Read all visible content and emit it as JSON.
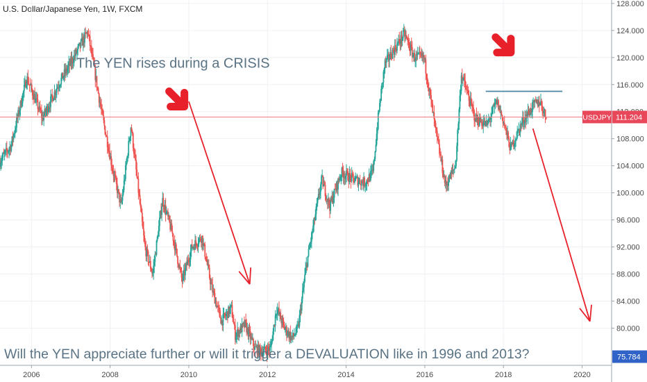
{
  "chart_data": {
    "type": "candlestick",
    "title": "U.S. Dollar/Japanese Yen, 1W, FXCM",
    "symbol": "USDJPY",
    "x_ticks": [
      "2006",
      "2008",
      "2010",
      "2012",
      "2014",
      "2016",
      "2018",
      "2020"
    ],
    "y_ticks": [
      "80.000",
      "84.000",
      "88.000",
      "92.000",
      "96.000",
      "100.000",
      "104.000",
      "108.000",
      "112.000",
      "116.000",
      "120.000",
      "124.000",
      "128.000"
    ],
    "ylim": [
      74.5,
      128.5
    ],
    "xlim": [
      2005.2,
      2020.75
    ],
    "last_price": 111.204,
    "last_price_label": "111.204",
    "low_marker": 75.784,
    "low_marker_label": "75.784",
    "grid": true,
    "price_path": [
      [
        2005.2,
        104.5
      ],
      [
        2005.5,
        107
      ],
      [
        2005.9,
        117
      ],
      [
        2006.3,
        111
      ],
      [
        2006.7,
        116
      ],
      [
        2007.0,
        119
      ],
      [
        2007.45,
        123.8
      ],
      [
        2007.8,
        112
      ],
      [
        2008.1,
        103
      ],
      [
        2008.3,
        98
      ],
      [
        2008.55,
        110
      ],
      [
        2008.9,
        92
      ],
      [
        2009.1,
        88
      ],
      [
        2009.35,
        99
      ],
      [
        2009.6,
        94
      ],
      [
        2009.85,
        87
      ],
      [
        2010.1,
        92
      ],
      [
        2010.35,
        93.5
      ],
      [
        2010.6,
        86
      ],
      [
        2010.85,
        81
      ],
      [
        2011.1,
        83
      ],
      [
        2011.2,
        79
      ],
      [
        2011.45,
        80.5
      ],
      [
        2011.7,
        77
      ],
      [
        2011.9,
        76.5
      ],
      [
        2012.1,
        77
      ],
      [
        2012.25,
        83
      ],
      [
        2012.45,
        80
      ],
      [
        2012.65,
        78.5
      ],
      [
        2012.8,
        80
      ],
      [
        2013.0,
        89
      ],
      [
        2013.4,
        102
      ],
      [
        2013.6,
        98
      ],
      [
        2013.9,
        103
      ],
      [
        2014.2,
        102
      ],
      [
        2014.5,
        101.5
      ],
      [
        2014.7,
        103
      ],
      [
        2014.85,
        112
      ],
      [
        2015.0,
        119
      ],
      [
        2015.5,
        123.5
      ],
      [
        2015.75,
        120
      ],
      [
        2016.0,
        120
      ],
      [
        2016.3,
        109
      ],
      [
        2016.55,
        101
      ],
      [
        2016.8,
        104
      ],
      [
        2016.95,
        117.5
      ],
      [
        2017.3,
        111
      ],
      [
        2017.6,
        110
      ],
      [
        2017.85,
        113.5
      ],
      [
        2018.0,
        111
      ],
      [
        2018.2,
        106.5
      ],
      [
        2018.5,
        110.5
      ],
      [
        2018.8,
        113
      ],
      [
        2018.95,
        113.5
      ],
      [
        2019.1,
        111.2
      ]
    ],
    "annotations": {
      "heading": "The YEN rises during a CRISIS",
      "question": "Will the YEN appreciate further or will it trigger a DEVALUATION like in 1996 and 2013?"
    },
    "resistance_line": {
      "from": [
        2017.55,
        115
      ],
      "to": [
        2019.5,
        115
      ]
    },
    "arrows": [
      {
        "from": [
          2010.0,
          113.5
        ],
        "to": [
          2011.55,
          86.5
        ]
      },
      {
        "from": [
          2018.75,
          109.5
        ],
        "to": [
          2020.2,
          81.0
        ]
      }
    ],
    "pointer_arrows": [
      {
        "at": [
          2009.5,
          115
        ]
      },
      {
        "at": [
          2017.8,
          123
        ]
      }
    ],
    "colors": {
      "up": "#26a69a",
      "down": "#ef5350",
      "arrow": "#e8202a",
      "resistance": "#4a86a8",
      "price_line": "#f07a84",
      "price_label_bg": "#e8485a",
      "low_label_bg": "#2f63c7",
      "text": "#5a7384",
      "grid": "#eef1f4"
    }
  }
}
